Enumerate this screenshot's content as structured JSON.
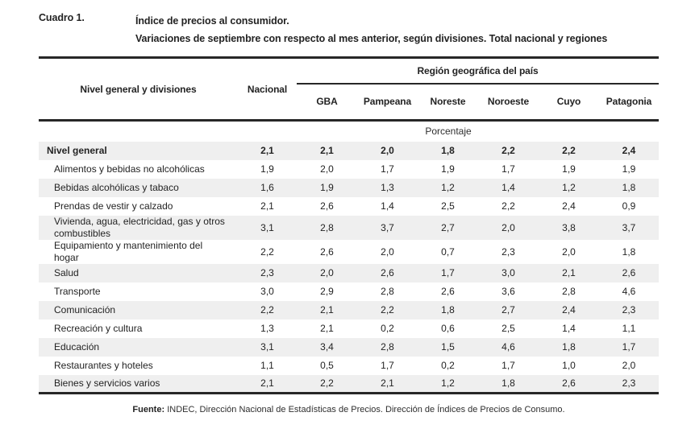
{
  "title": {
    "cuadro_label": "Cuadro 1.",
    "line1": "Índice de precios al consumidor.",
    "line2": "Variaciones de septiembre con respecto al mes anterior, según divisiones. Total nacional y regiones"
  },
  "table": {
    "col1_header": "Nivel general y divisiones",
    "col2_header": "Nacional",
    "region_group_header": "Región geográfica del país",
    "region_headers": [
      "GBA",
      "Pampeana",
      "Noreste",
      "Noroeste",
      "Cuyo",
      "Patagonia"
    ],
    "unit_label": "Porcentaje",
    "rows": [
      {
        "label": "Nivel general",
        "bold": true,
        "values": [
          "2,1",
          "2,1",
          "2,0",
          "1,8",
          "2,2",
          "2,2",
          "2,4"
        ]
      },
      {
        "label": "Alimentos y bebidas no alcohólicas",
        "bold": false,
        "values": [
          "1,9",
          "2,0",
          "1,7",
          "1,9",
          "1,7",
          "1,9",
          "1,9"
        ]
      },
      {
        "label": "Bebidas alcohólicas y tabaco",
        "bold": false,
        "values": [
          "1,6",
          "1,9",
          "1,3",
          "1,2",
          "1,4",
          "1,2",
          "1,8"
        ]
      },
      {
        "label": "Prendas de vestir y calzado",
        "bold": false,
        "values": [
          "2,1",
          "2,6",
          "1,4",
          "2,5",
          "2,2",
          "2,4",
          "0,9"
        ]
      },
      {
        "label": "Vivienda, agua, electricidad, gas y otros combustibles",
        "bold": false,
        "values": [
          "3,1",
          "2,8",
          "3,7",
          "2,7",
          "2,0",
          "3,8",
          "3,7"
        ]
      },
      {
        "label": "Equipamiento y mantenimiento del hogar",
        "bold": false,
        "values": [
          "2,2",
          "2,6",
          "2,0",
          "0,7",
          "2,3",
          "2,0",
          "1,8"
        ]
      },
      {
        "label": "Salud",
        "bold": false,
        "values": [
          "2,3",
          "2,0",
          "2,6",
          "1,7",
          "3,0",
          "2,1",
          "2,6"
        ]
      },
      {
        "label": "Transporte",
        "bold": false,
        "values": [
          "3,0",
          "2,9",
          "2,8",
          "2,6",
          "3,6",
          "2,8",
          "4,6"
        ]
      },
      {
        "label": "Comunicación",
        "bold": false,
        "values": [
          "2,2",
          "2,1",
          "2,2",
          "1,8",
          "2,7",
          "2,4",
          "2,3"
        ]
      },
      {
        "label": "Recreación y cultura",
        "bold": false,
        "values": [
          "1,3",
          "2,1",
          "0,2",
          "0,6",
          "2,5",
          "1,4",
          "1,1"
        ]
      },
      {
        "label": "Educación",
        "bold": false,
        "values": [
          "3,1",
          "3,4",
          "2,8",
          "1,5",
          "4,6",
          "1,8",
          "1,7"
        ]
      },
      {
        "label": "Restaurantes y hoteles",
        "bold": false,
        "values": [
          "1,1",
          "0,5",
          "1,7",
          "0,2",
          "1,7",
          "1,0",
          "2,0"
        ]
      },
      {
        "label": "Bienes y servicios varios",
        "bold": false,
        "values": [
          "2,1",
          "2,2",
          "2,1",
          "1,2",
          "1,8",
          "2,6",
          "2,3"
        ]
      }
    ]
  },
  "footer": {
    "source_label": "Fuente:",
    "source_text": " INDEC, Dirección Nacional de Estadísticas de Precios. Dirección de Índices de Precios de Consumo."
  },
  "colors": {
    "stripe": "#efefef",
    "border": "#272727",
    "text": "#232323"
  }
}
